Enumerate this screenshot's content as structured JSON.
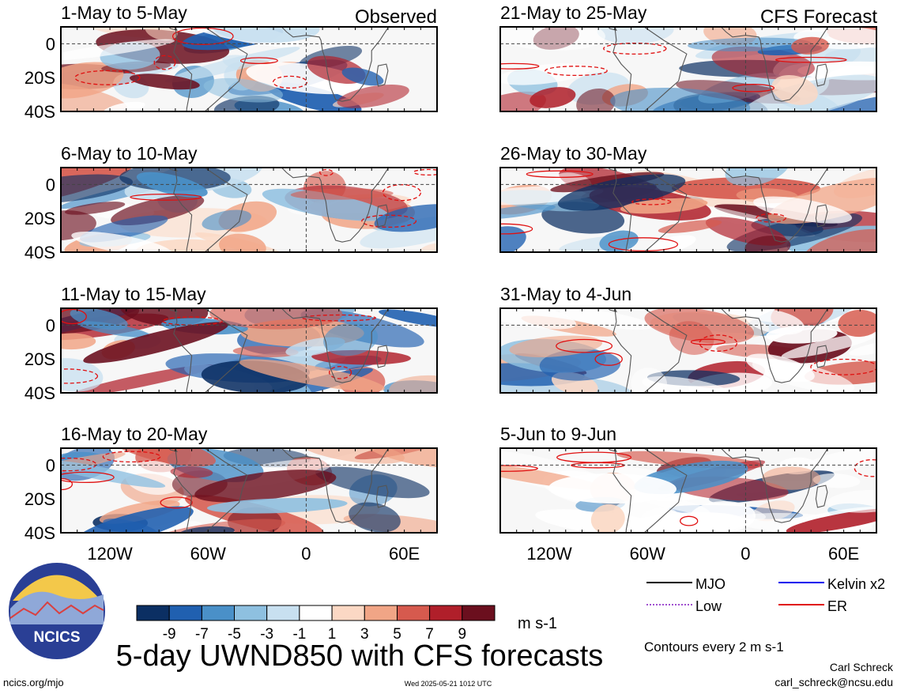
{
  "figure": {
    "title": "5-day UWND850 with CFS forecasts",
    "observed_label": "Observed",
    "forecast_label": "CFS Forecast",
    "units": "m s-1",
    "contour_note": "Contours every 2 m s-1",
    "author": "Carl Schreck",
    "email": "carl_schreck@ncsu.edu",
    "site": "ncics.org/mjo",
    "timestamp": "Wed 2025-05-21 1012 UTC",
    "logo_text": "NCICS"
  },
  "chart_data": [
    {
      "type": "heatmap",
      "title": "1-May to 5-May",
      "source": "Observed",
      "x_ticks": [
        "120W",
        "60W",
        "0",
        "60E"
      ],
      "y_ticks": [
        "0",
        "20S",
        "40S"
      ],
      "ylim": [
        -40,
        10
      ],
      "xlim": [
        -150,
        80
      ]
    },
    {
      "type": "heatmap",
      "title": "6-May to 10-May",
      "source": "Observed",
      "x_ticks": [
        "120W",
        "60W",
        "0",
        "60E"
      ],
      "y_ticks": [
        "0",
        "20S",
        "40S"
      ],
      "ylim": [
        -40,
        10
      ],
      "xlim": [
        -150,
        80
      ]
    },
    {
      "type": "heatmap",
      "title": "11-May to 15-May",
      "source": "Observed",
      "x_ticks": [
        "120W",
        "60W",
        "0",
        "60E"
      ],
      "y_ticks": [
        "0",
        "20S",
        "40S"
      ],
      "ylim": [
        -40,
        10
      ],
      "xlim": [
        -150,
        80
      ]
    },
    {
      "type": "heatmap",
      "title": "16-May to 20-May",
      "source": "Observed",
      "x_ticks": [
        "120W",
        "60W",
        "0",
        "60E"
      ],
      "y_ticks": [
        "0",
        "20S",
        "40S"
      ],
      "ylim": [
        -40,
        10
      ],
      "xlim": [
        -150,
        80
      ]
    },
    {
      "type": "heatmap",
      "title": "21-May to 25-May",
      "source": "CFS Forecast",
      "x_ticks": [
        "120W",
        "60W",
        "0",
        "60E"
      ],
      "y_ticks": [
        "0",
        "20S",
        "40S"
      ],
      "ylim": [
        -40,
        10
      ],
      "xlim": [
        -150,
        80
      ]
    },
    {
      "type": "heatmap",
      "title": "26-May to 30-May",
      "source": "CFS Forecast",
      "x_ticks": [
        "120W",
        "60W",
        "0",
        "60E"
      ],
      "y_ticks": [
        "0",
        "20S",
        "40S"
      ],
      "ylim": [
        -40,
        10
      ],
      "xlim": [
        -150,
        80
      ]
    },
    {
      "type": "heatmap",
      "title": "31-May to 4-Jun",
      "source": "CFS Forecast",
      "x_ticks": [
        "120W",
        "60W",
        "0",
        "60E"
      ],
      "y_ticks": [
        "0",
        "20S",
        "40S"
      ],
      "ylim": [
        -40,
        10
      ],
      "xlim": [
        -150,
        80
      ]
    },
    {
      "type": "heatmap",
      "title": "5-Jun to 9-Jun",
      "source": "CFS Forecast",
      "x_ticks": [
        "120W",
        "60W",
        "0",
        "60E"
      ],
      "y_ticks": [
        "0",
        "20S",
        "40S"
      ],
      "ylim": [
        -40,
        10
      ],
      "xlim": [
        -150,
        80
      ]
    }
  ],
  "colorbar": {
    "labels": [
      "-9",
      "-7",
      "-5",
      "-3",
      "-1",
      "1",
      "3",
      "5",
      "7",
      "9"
    ],
    "colors": [
      "#0b2f63",
      "#2060b0",
      "#4a90c8",
      "#8ec0e0",
      "#c8e0f0",
      "#ffffff",
      "#fbd8c4",
      "#f1a586",
      "#d65a4e",
      "#b01f2a",
      "#6b0f1e"
    ]
  },
  "legend": [
    {
      "label": "MJO",
      "color": "#000000",
      "style": "solid"
    },
    {
      "label": "Kelvin x2",
      "color": "#0000ee",
      "style": "solid"
    },
    {
      "label": "Low",
      "color": "#a050d0",
      "style": "dotted"
    },
    {
      "label": "ER",
      "color": "#e01010",
      "style": "solid"
    }
  ]
}
